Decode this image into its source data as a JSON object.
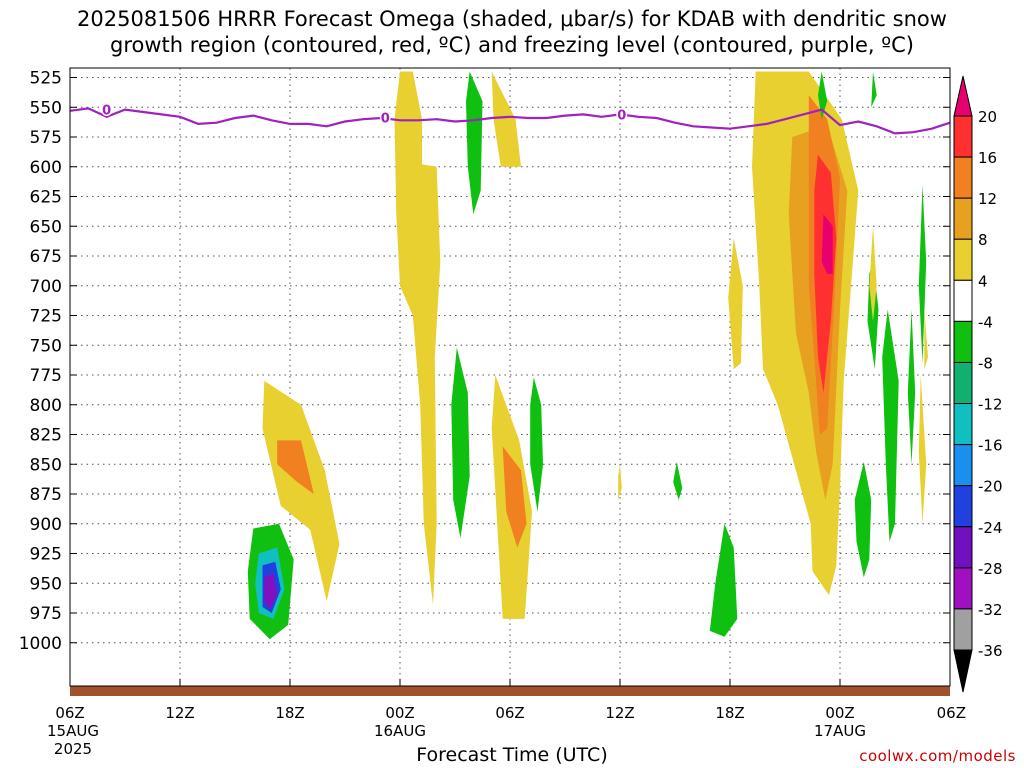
{
  "title_line1": "2025081506 HRRR Forecast Omega (shaded, μbar/s) for KDAB with dendritic snow",
  "title_line2": "growth region (contoured, red, ºC) and freezing level (contoured, purple, ºC)",
  "xlabel": "Forecast Time (UTC)",
  "credit": "coolwx.com/models",
  "chart_data": {
    "type": "heatmap",
    "title": "2025081506 HRRR Forecast Omega (shaded, μbar/s) for KDAB with dendritic snow growth region (contoured, red, ºC) and freezing level (contoured, purple, ºC)",
    "xlabel": "Forecast Time (UTC)",
    "ylabel": "",
    "x_ticks": [
      {
        "h": 0,
        "label": "06Z",
        "sub": "15AUG",
        "sub2": "2025"
      },
      {
        "h": 6,
        "label": "12Z"
      },
      {
        "h": 12,
        "label": "18Z"
      },
      {
        "h": 18,
        "label": "00Z",
        "sub": "16AUG"
      },
      {
        "h": 24,
        "label": "06Z"
      },
      {
        "h": 30,
        "label": "12Z"
      },
      {
        "h": 36,
        "label": "18Z"
      },
      {
        "h": 42,
        "label": "00Z",
        "sub": "17AUG"
      },
      {
        "h": 48,
        "label": "06Z"
      }
    ],
    "xlim_hours": [
      0,
      48
    ],
    "y_ticks": [
      525,
      550,
      575,
      600,
      625,
      650,
      675,
      700,
      725,
      750,
      775,
      800,
      825,
      850,
      875,
      900,
      925,
      950,
      975,
      1000
    ],
    "ylim_hpa": [
      520,
      1010
    ],
    "colorbar": {
      "labels": [
        "20",
        "16",
        "12",
        "8",
        "4",
        "-4",
        "-8",
        "-12",
        "-16",
        "-20",
        "-24",
        "-28",
        "-32",
        "-36"
      ],
      "colors": [
        "#e8006e",
        "#ff3030",
        "#f08020",
        "#e8a020",
        "#e8d030",
        "#ffffff",
        "#10c010",
        "#10b070",
        "#10c0c0",
        "#1890f0",
        "#2040e0",
        "#7010c0",
        "#a010c0",
        "#a0a0a0",
        "#000000"
      ]
    },
    "freezing_level": {
      "color": "#a020c0",
      "label": "0",
      "points": [
        [
          0,
          553
        ],
        [
          1,
          551
        ],
        [
          2,
          558
        ],
        [
          3,
          552
        ],
        [
          4,
          554
        ],
        [
          6,
          558
        ],
        [
          7,
          564
        ],
        [
          8,
          563
        ],
        [
          9,
          559
        ],
        [
          10,
          557
        ],
        [
          11,
          561
        ],
        [
          12,
          564
        ],
        [
          13,
          564
        ],
        [
          14,
          566
        ],
        [
          15,
          562
        ],
        [
          16,
          560
        ],
        [
          17,
          559
        ],
        [
          18,
          561
        ],
        [
          19,
          561
        ],
        [
          20,
          560
        ],
        [
          21,
          562
        ],
        [
          22,
          561
        ],
        [
          23,
          559
        ],
        [
          24,
          558
        ],
        [
          25,
          559
        ],
        [
          26,
          559
        ],
        [
          27,
          557
        ],
        [
          28,
          556
        ],
        [
          29,
          558
        ],
        [
          30,
          556
        ],
        [
          31,
          558
        ],
        [
          32,
          559
        ],
        [
          33,
          563
        ],
        [
          34,
          566
        ],
        [
          35,
          567
        ],
        [
          36,
          568
        ],
        [
          37,
          566
        ],
        [
          38,
          564
        ],
        [
          39,
          560
        ],
        [
          40,
          556
        ],
        [
          41,
          552
        ],
        [
          42,
          565
        ],
        [
          43,
          562
        ],
        [
          44,
          566
        ],
        [
          45,
          572
        ],
        [
          46,
          571
        ],
        [
          47,
          568
        ],
        [
          48,
          563
        ]
      ]
    },
    "shaded_regions": [
      {
        "cls": "yellow",
        "points": [
          [
            10.6,
            780
          ],
          [
            12.6,
            800
          ],
          [
            13.9,
            855
          ],
          [
            14.7,
            917
          ],
          [
            14,
            965
          ],
          [
            13.1,
            905
          ],
          [
            11.5,
            885
          ],
          [
            10.5,
            820
          ]
        ]
      },
      {
        "cls": "orange",
        "points": [
          [
            11.3,
            830
          ],
          [
            12.6,
            830
          ],
          [
            13.3,
            875
          ],
          [
            12.4,
            865
          ],
          [
            11.3,
            850
          ]
        ]
      },
      {
        "cls": "green",
        "points": [
          [
            10,
            904
          ],
          [
            11.4,
            900
          ],
          [
            12.2,
            930
          ],
          [
            11.9,
            985
          ],
          [
            10.9,
            997
          ],
          [
            9.8,
            980
          ],
          [
            9.7,
            940
          ]
        ]
      },
      {
        "cls": "cyan",
        "points": [
          [
            10.3,
            925
          ],
          [
            11.3,
            920
          ],
          [
            11.7,
            955
          ],
          [
            11.1,
            980
          ],
          [
            10.3,
            975
          ],
          [
            10.1,
            950
          ]
        ]
      },
      {
        "cls": "blue",
        "points": [
          [
            10.5,
            935
          ],
          [
            11.2,
            932
          ],
          [
            11.5,
            955
          ],
          [
            11.0,
            975
          ],
          [
            10.5,
            970
          ]
        ]
      },
      {
        "cls": "purple",
        "points": [
          [
            10.6,
            945
          ],
          [
            11.1,
            942
          ],
          [
            11.3,
            960
          ],
          [
            10.9,
            972
          ],
          [
            10.6,
            965
          ]
        ]
      },
      {
        "cls": "yellow",
        "points": [
          [
            18,
            520
          ],
          [
            18.7,
            520
          ],
          [
            19.2,
            560
          ],
          [
            19.2,
            598
          ],
          [
            20,
            600
          ],
          [
            20.2,
            680
          ],
          [
            19.9,
            760
          ],
          [
            20.0,
            900
          ],
          [
            19.8,
            968
          ],
          [
            19.3,
            900
          ],
          [
            19.1,
            800
          ],
          [
            18.7,
            725
          ],
          [
            18.0,
            700
          ],
          [
            17.8,
            640
          ],
          [
            17.7,
            560
          ]
        ]
      },
      {
        "cls": "green",
        "points": [
          [
            21.8,
            520
          ],
          [
            22.5,
            545
          ],
          [
            22.4,
            620
          ],
          [
            22.0,
            640
          ],
          [
            21.7,
            600
          ],
          [
            21.6,
            545
          ]
        ]
      },
      {
        "cls": "yellow",
        "points": [
          [
            23.0,
            520
          ],
          [
            24.3,
            560
          ],
          [
            24.6,
            600
          ],
          [
            23.5,
            600
          ],
          [
            23.1,
            560
          ]
        ]
      },
      {
        "cls": "green",
        "points": [
          [
            21.1,
            752
          ],
          [
            21.7,
            790
          ],
          [
            21.8,
            860
          ],
          [
            21.3,
            912
          ],
          [
            20.9,
            880
          ],
          [
            20.8,
            800
          ]
        ]
      },
      {
        "cls": "yellow",
        "points": [
          [
            23.2,
            775
          ],
          [
            24.5,
            830
          ],
          [
            25.2,
            890
          ],
          [
            24.8,
            980
          ],
          [
            23.6,
            980
          ],
          [
            23.3,
            900
          ],
          [
            23.0,
            820
          ]
        ]
      },
      {
        "cls": "orange",
        "points": [
          [
            23.6,
            835
          ],
          [
            24.6,
            855
          ],
          [
            24.9,
            900
          ],
          [
            24.4,
            920
          ],
          [
            23.8,
            890
          ]
        ]
      },
      {
        "cls": "green",
        "points": [
          [
            25.3,
            777
          ],
          [
            25.7,
            800
          ],
          [
            25.8,
            850
          ],
          [
            25.5,
            890
          ],
          [
            25.1,
            850
          ],
          [
            25.1,
            800
          ]
        ]
      },
      {
        "cls": "yellow",
        "points": [
          [
            36.2,
            660
          ],
          [
            36.7,
            700
          ],
          [
            36.6,
            765
          ],
          [
            36.2,
            770
          ],
          [
            35.9,
            710
          ]
        ]
      },
      {
        "cls": "green",
        "points": [
          [
            35.7,
            900
          ],
          [
            36.2,
            920
          ],
          [
            36.4,
            980
          ],
          [
            35.7,
            995
          ],
          [
            34.9,
            990
          ],
          [
            35.2,
            950
          ]
        ]
      },
      {
        "cls": "green",
        "points": [
          [
            33.1,
            848
          ],
          [
            33.4,
            870
          ],
          [
            33.2,
            880
          ],
          [
            32.9,
            865
          ]
        ]
      },
      {
        "cls": "yellow",
        "points": [
          [
            30.0,
            850
          ],
          [
            30.1,
            870
          ],
          [
            29.9,
            880
          ],
          [
            29.9,
            860
          ]
        ]
      },
      {
        "cls": "yellow",
        "points": [
          [
            37.4,
            520
          ],
          [
            40.3,
            520
          ],
          [
            42.1,
            560
          ],
          [
            43.0,
            620
          ],
          [
            42.6,
            700
          ],
          [
            42.2,
            780
          ],
          [
            42.0,
            870
          ],
          [
            41.8,
            935
          ],
          [
            41.4,
            960
          ],
          [
            40.5,
            940
          ],
          [
            40.4,
            900
          ],
          [
            39.5,
            850
          ],
          [
            38.6,
            800
          ],
          [
            37.8,
            770
          ],
          [
            37.6,
            700
          ],
          [
            37.2,
            600
          ]
        ]
      },
      {
        "cls": "gold",
        "points": [
          [
            39.4,
            575
          ],
          [
            41.3,
            565
          ],
          [
            42.4,
            620
          ],
          [
            42.0,
            720
          ],
          [
            41.6,
            850
          ],
          [
            41.2,
            880
          ],
          [
            40.7,
            840
          ],
          [
            40.3,
            790
          ],
          [
            39.6,
            740
          ],
          [
            39.2,
            640
          ]
        ]
      },
      {
        "cls": "orange",
        "points": [
          [
            40.3,
            540
          ],
          [
            41.3,
            560
          ],
          [
            42.0,
            610
          ],
          [
            41.7,
            710
          ],
          [
            41.3,
            820
          ],
          [
            40.9,
            825
          ],
          [
            40.6,
            760
          ],
          [
            40.3,
            700
          ],
          [
            40.3,
            600
          ]
        ]
      },
      {
        "cls": "red",
        "points": [
          [
            40.8,
            590
          ],
          [
            41.5,
            605
          ],
          [
            41.8,
            660
          ],
          [
            41.5,
            730
          ],
          [
            41.1,
            790
          ],
          [
            40.8,
            760
          ],
          [
            40.6,
            690
          ],
          [
            40.6,
            620
          ]
        ]
      },
      {
        "cls": "magenta",
        "points": [
          [
            41.1,
            640
          ],
          [
            41.6,
            650
          ],
          [
            41.6,
            690
          ],
          [
            41.3,
            690
          ],
          [
            41.0,
            680
          ]
        ]
      },
      {
        "cls": "green",
        "points": [
          [
            41.0,
            520
          ],
          [
            41.3,
            545
          ],
          [
            41.0,
            560
          ],
          [
            40.8,
            540
          ]
        ]
      },
      {
        "cls": "green",
        "points": [
          [
            43.8,
            680
          ],
          [
            44.1,
            720
          ],
          [
            43.9,
            770
          ],
          [
            43.5,
            730
          ],
          [
            43.6,
            690
          ]
        ]
      },
      {
        "cls": "green",
        "points": [
          [
            43.8,
            520
          ],
          [
            44.0,
            540
          ],
          [
            43.7,
            550
          ]
        ]
      },
      {
        "cls": "yellow",
        "points": [
          [
            43.8,
            650
          ],
          [
            44.0,
            700
          ],
          [
            43.8,
            730
          ],
          [
            43.6,
            700
          ]
        ]
      },
      {
        "cls": "green",
        "points": [
          [
            44.6,
            720
          ],
          [
            45.2,
            780
          ],
          [
            45.0,
            900
          ],
          [
            44.7,
            915
          ],
          [
            44.5,
            850
          ],
          [
            44.3,
            760
          ]
        ]
      },
      {
        "cls": "green",
        "points": [
          [
            43.3,
            848
          ],
          [
            43.7,
            880
          ],
          [
            43.6,
            930
          ],
          [
            43.3,
            945
          ],
          [
            42.9,
            915
          ],
          [
            42.8,
            880
          ]
        ]
      },
      {
        "cls": "green",
        "points": [
          [
            46.5,
            615
          ],
          [
            46.7,
            680
          ],
          [
            46.5,
            765
          ],
          [
            46.3,
            700
          ]
        ]
      },
      {
        "cls": "green",
        "points": [
          [
            45.9,
            720
          ],
          [
            46.1,
            790
          ],
          [
            45.9,
            850
          ],
          [
            45.7,
            790
          ]
        ]
      },
      {
        "cls": "yellow",
        "points": [
          [
            46.4,
            775
          ],
          [
            46.7,
            850
          ],
          [
            46.5,
            900
          ],
          [
            46.3,
            840
          ]
        ]
      },
      {
        "cls": "yellow",
        "points": [
          [
            46.6,
            720
          ],
          [
            46.8,
            760
          ],
          [
            46.6,
            770
          ]
        ]
      }
    ],
    "terrain_color": "#a0522d"
  }
}
